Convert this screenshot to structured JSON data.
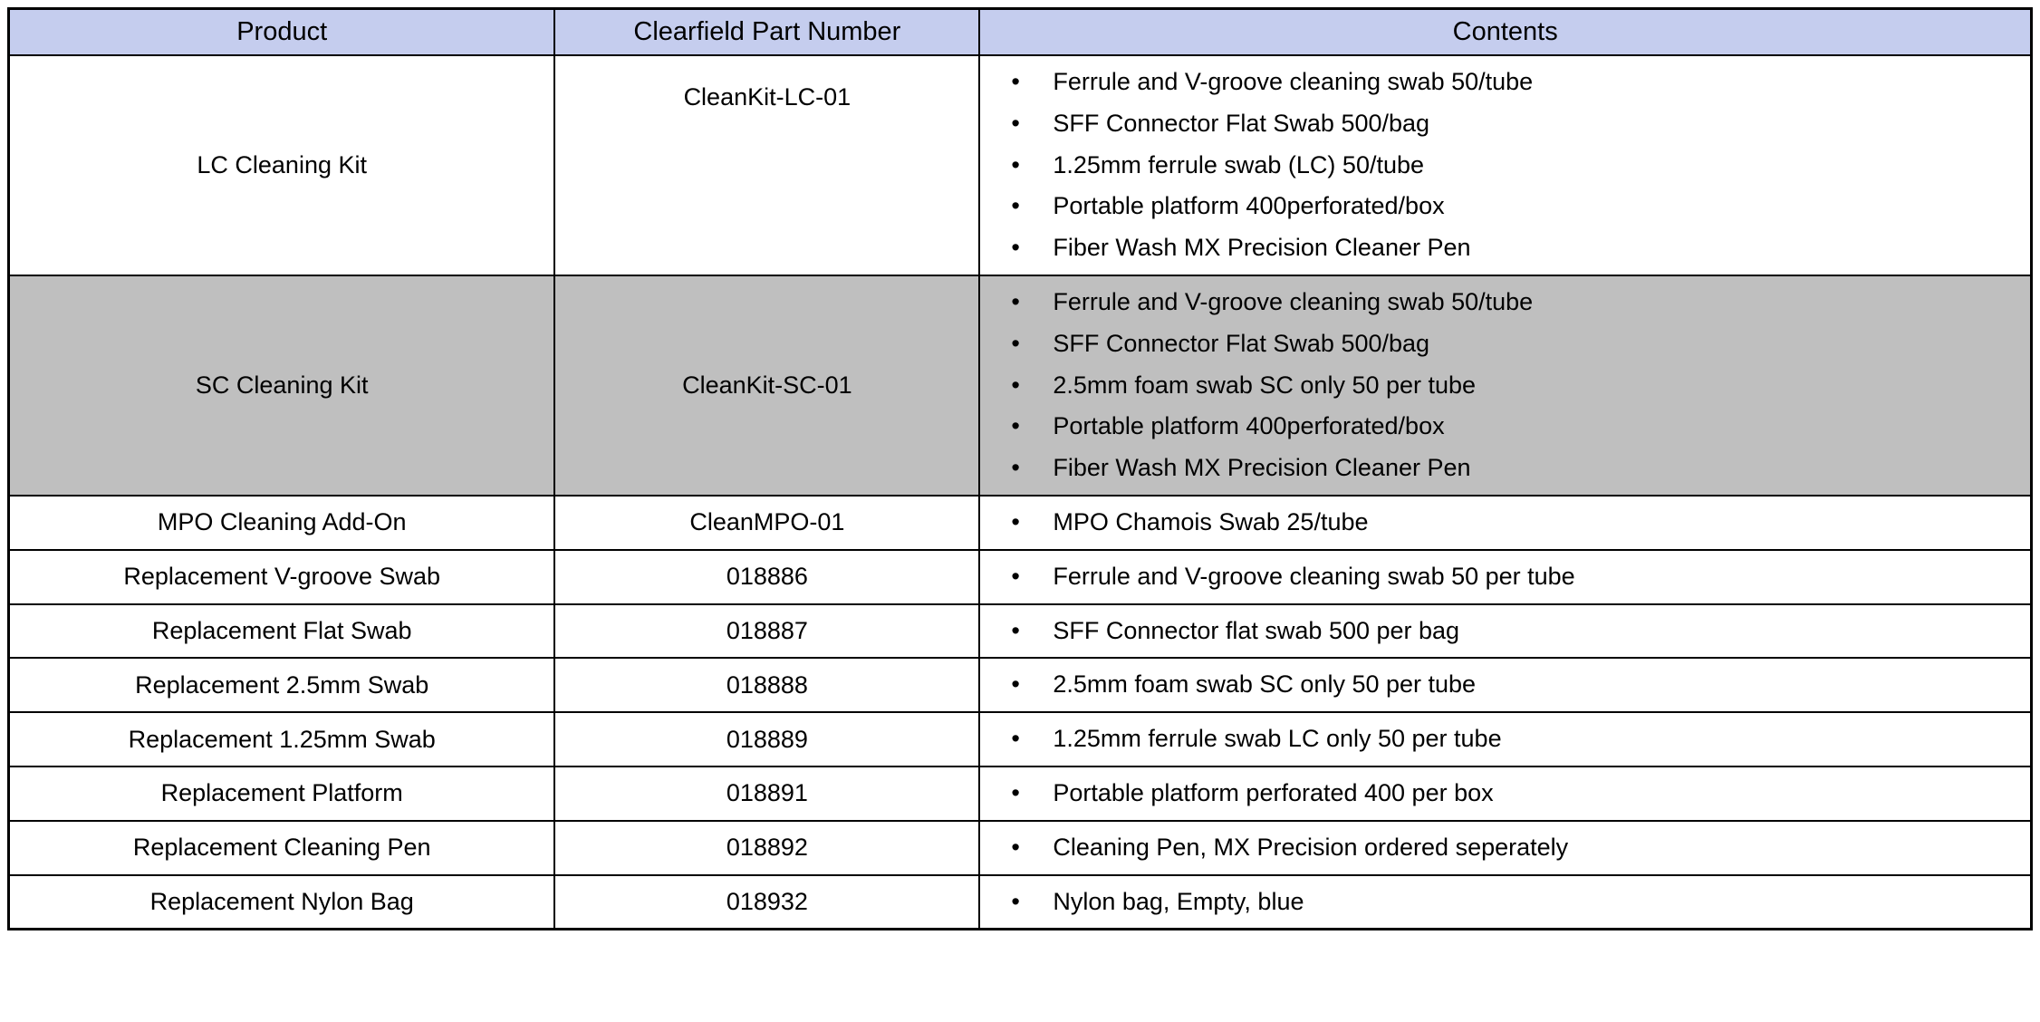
{
  "table": {
    "headers": {
      "product": "Product",
      "part_number": "Clearfield Part Number",
      "contents": "Contents"
    },
    "styling": {
      "header_bg": "#c5cdee",
      "shaded_row_bg": "#bfbfbf",
      "border_color": "#000000",
      "text_color": "#000000",
      "header_fontsize": 29,
      "body_fontsize": 27,
      "col_widths_pct": [
        27,
        21,
        52
      ]
    },
    "rows": [
      {
        "product": "LC Cleaning Kit",
        "part_number": "CleanKit-LC-01",
        "shaded": false,
        "part_valign_top": true,
        "contents": [
          "Ferrule and V-groove cleaning swab 50/tube",
          "SFF Connector Flat Swab  500/bag",
          "1.25mm ferrule swab (LC) 50/tube",
          "Portable platform  400perforated/box",
          "Fiber Wash MX Precision Cleaner Pen"
        ]
      },
      {
        "product": "SC Cleaning Kit",
        "part_number": "CleanKit-SC-01",
        "shaded": true,
        "part_valign_top": false,
        "contents": [
          "Ferrule and V-groove cleaning swab 50/tube",
          "SFF Connector Flat Swab  500/bag",
          "2.5mm foam swab SC only 50 per tube",
          "Portable platform  400perforated/box",
          "Fiber Wash MX Precision Cleaner Pen"
        ]
      },
      {
        "product": "MPO Cleaning Add-On",
        "part_number": "CleanMPO-01",
        "shaded": false,
        "part_valign_top": false,
        "contents": [
          "MPO Chamois Swab 25/tube"
        ]
      },
      {
        "product": "Replacement V-groove Swab",
        "part_number": "018886",
        "shaded": false,
        "part_valign_top": false,
        "contents": [
          "Ferrule and V-groove cleaning swab 50 per tube"
        ]
      },
      {
        "product": "Replacement Flat Swab",
        "part_number": "018887",
        "shaded": false,
        "part_valign_top": false,
        "contents": [
          "SFF Connector flat swab 500 per bag"
        ]
      },
      {
        "product": "Replacement 2.5mm Swab",
        "part_number": "018888",
        "shaded": false,
        "part_valign_top": false,
        "contents": [
          "2.5mm foam swab SC only 50 per tube"
        ]
      },
      {
        "product": "Replacement 1.25mm Swab",
        "part_number": "018889",
        "shaded": false,
        "part_valign_top": false,
        "contents": [
          "1.25mm ferrule swab LC only 50 per tube"
        ]
      },
      {
        "product": "Replacement Platform",
        "part_number": "018891",
        "shaded": false,
        "part_valign_top": false,
        "contents": [
          "Portable platform perforated 400 per box"
        ]
      },
      {
        "product": "Replacement Cleaning Pen",
        "part_number": "018892",
        "shaded": false,
        "part_valign_top": false,
        "contents": [
          "Cleaning Pen, MX Precision ordered seperately"
        ]
      },
      {
        "product": "Replacement Nylon Bag",
        "part_number": "018932",
        "shaded": false,
        "part_valign_top": false,
        "contents": [
          "Nylon bag, Empty, blue"
        ]
      }
    ]
  }
}
